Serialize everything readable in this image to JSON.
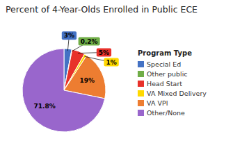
{
  "chart_data": {
    "type": "pie",
    "title": "Percent of 4-Year-Olds Enrolled in Public ECE",
    "categories": [
      "Special Ed",
      "Other public",
      "Head Start",
      "VA Mixed Delivery",
      "VA VPI",
      "Other/None"
    ],
    "values": [
      3,
      0.2,
      5,
      1,
      19,
      71.8
    ],
    "value_labels": [
      "3%",
      "0.2%",
      "5%",
      "1%",
      "19%",
      "71.8%"
    ],
    "colors": [
      "#4472c4",
      "#70ad47",
      "#e8312a",
      "#ffd900",
      "#ed7d31",
      "#9966cc"
    ],
    "data_labels": true,
    "legend": "right",
    "legend_title": "Program Type"
  }
}
